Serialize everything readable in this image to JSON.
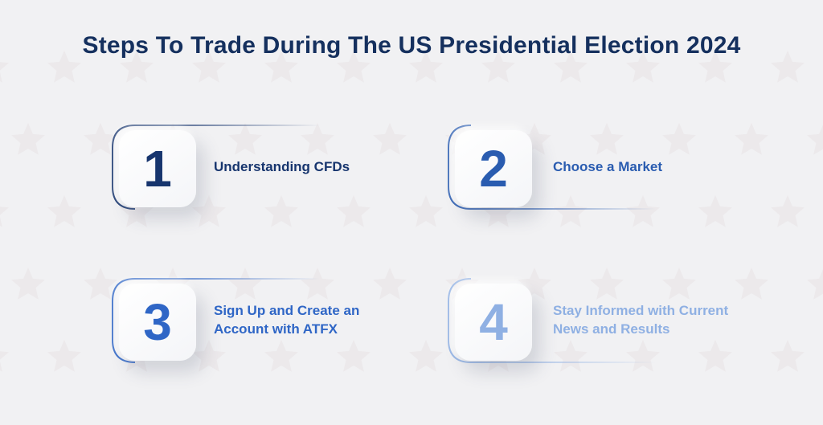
{
  "title": "Steps To Trade During The US Presidential Election 2024",
  "steps": [
    {
      "number": "1",
      "text": "Understanding CFDs",
      "color": "#17356e"
    },
    {
      "number": "2",
      "text": "Choose a Market",
      "color": "#2a5cb0"
    },
    {
      "number": "3",
      "text": "Sign Up and Create an Account with ATFX",
      "color": "#2f66c6"
    },
    {
      "number": "4",
      "text": "Stay Informed with Current News and Results",
      "color": "#8fb0e3"
    }
  ],
  "colors": {
    "background": "#f1f1f3",
    "title": "#15305e",
    "stars": "#e7e1e3"
  }
}
